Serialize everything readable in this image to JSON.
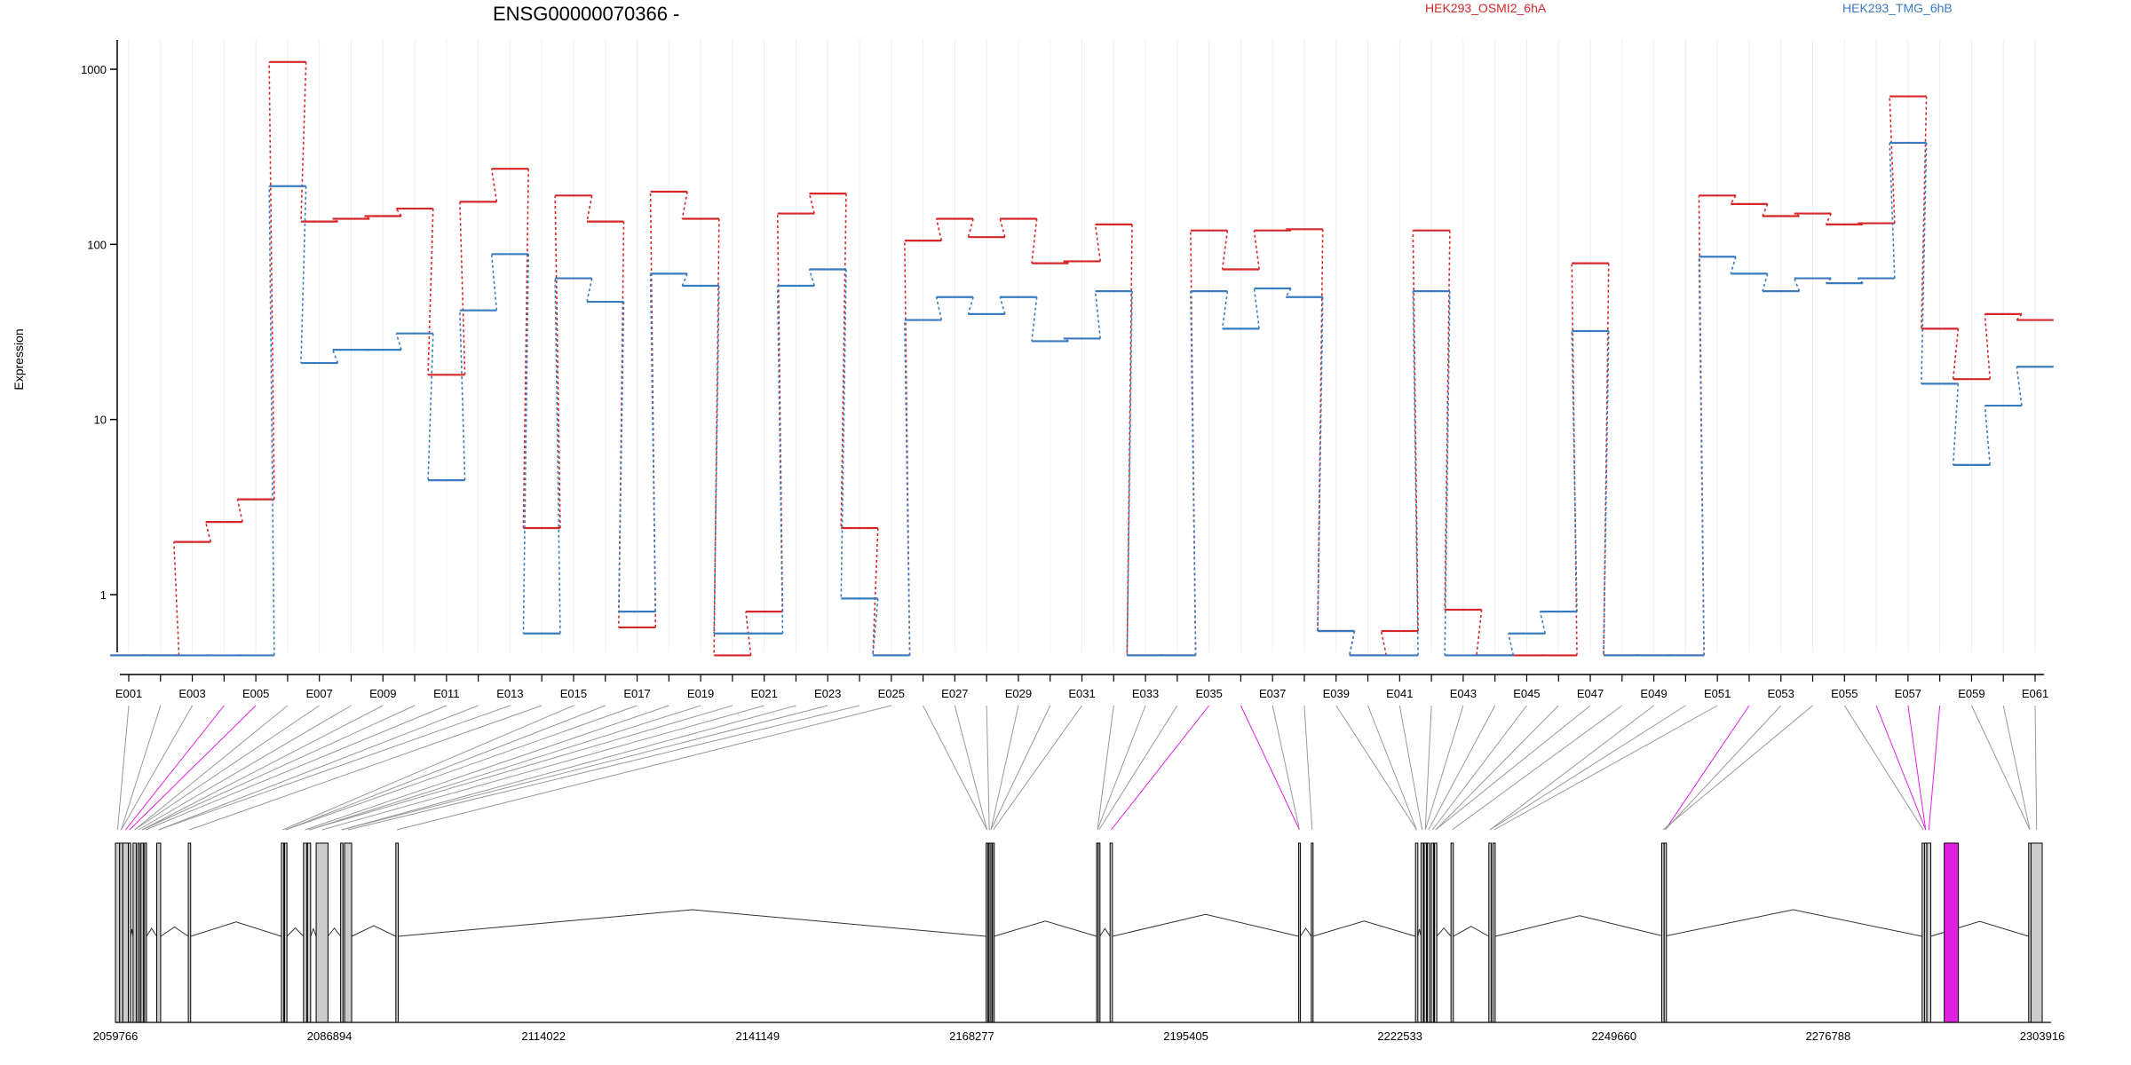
{
  "chart_data": {
    "type": "line",
    "title": "ENSG00000070366 -",
    "ylabel": "Expression",
    "y_scale": "log",
    "ylim": [
      0.42,
      1300
    ],
    "y_ticks": [
      1,
      10,
      100,
      1000
    ],
    "y_tick_labels": [
      "1",
      "10",
      "100",
      "1000"
    ],
    "grid": "vertical lines at each exon",
    "series": [
      {
        "name": "HEK293_OSMI2_6hA",
        "color": "#d62728",
        "values": [
          0.45,
          0.45,
          2.0,
          2.6,
          3.5,
          1100,
          135,
          140,
          145,
          160,
          18,
          175,
          270,
          2.4,
          190,
          135,
          0.65,
          200,
          140,
          0.45,
          0.8,
          150,
          195,
          2.4,
          0.45,
          105,
          140,
          110,
          140,
          78,
          80,
          130,
          0.45,
          0.45,
          120,
          72,
          120,
          122,
          0.62,
          0.45,
          0.62,
          120,
          0.82,
          0.45,
          0.45,
          0.45,
          78,
          0.45,
          0.45,
          0.45,
          190,
          170,
          145,
          150,
          130,
          132,
          700,
          33,
          17,
          40,
          37
        ]
      },
      {
        "name": "HEK293_TMG_6hB",
        "color": "#3a7bbf",
        "values": [
          0.45,
          0.45,
          0.45,
          0.45,
          0.45,
          215,
          21,
          25,
          25,
          31,
          4.5,
          42,
          88,
          0.6,
          64,
          47,
          0.8,
          68,
          58,
          0.6,
          0.6,
          58,
          72,
          0.95,
          0.45,
          37,
          50,
          40,
          50,
          28,
          29,
          54,
          0.45,
          0.45,
          54,
          33,
          56,
          50,
          0.62,
          0.45,
          0.45,
          54,
          0.45,
          0.45,
          0.6,
          0.8,
          32,
          0.45,
          0.45,
          0.45,
          85,
          68,
          54,
          64,
          60,
          64,
          380,
          16,
          5.5,
          12,
          20
        ]
      }
    ],
    "exons": [
      "E001",
      "E002",
      "E003",
      "E004",
      "E005",
      "E006",
      "E007",
      "E008",
      "E009",
      "E010",
      "E011",
      "E012",
      "E013",
      "E014",
      "E015",
      "E016",
      "E017",
      "E018",
      "E019",
      "E020",
      "E021",
      "E022",
      "E023",
      "E024",
      "E025",
      "E026",
      "E027",
      "E028",
      "E029",
      "E030",
      "E031",
      "E032",
      "E033",
      "E034",
      "E035",
      "E036",
      "E037",
      "E038",
      "E039",
      "E040",
      "E041",
      "E042",
      "E043",
      "E044",
      "E045",
      "E046",
      "E047",
      "E048",
      "E049",
      "E050",
      "E051",
      "E052",
      "E053",
      "E054",
      "E055",
      "E056",
      "E057",
      "E058",
      "E059",
      "E060",
      "E061"
    ],
    "exon_tick_labels": [
      "E001",
      "E003",
      "E005",
      "E007",
      "E009",
      "E011",
      "E013",
      "E015",
      "E017",
      "E019",
      "E021",
      "E023",
      "E025",
      "E027",
      "E029",
      "E031",
      "E033",
      "E035",
      "E037",
      "E039",
      "E041",
      "E043",
      "E045",
      "E047",
      "E049",
      "E051",
      "E053",
      "E055",
      "E057",
      "E059",
      "E061"
    ],
    "highlighted_exons": [
      "E004",
      "E005",
      "E035",
      "E036",
      "E052",
      "E056",
      "E057",
      "E058"
    ],
    "genomic_axis": {
      "range": [
        2059766,
        2303916
      ],
      "ticks": [
        2059766,
        2086894,
        2114022,
        2141149,
        2168277,
        2195405,
        2222533,
        2249660,
        2276788,
        2303916
      ],
      "tick_labels": [
        "2059766",
        "2086894",
        "2114022",
        "2141149",
        "2168277",
        "2195405",
        "2222533",
        "2249660",
        "2276788",
        "2303916"
      ]
    },
    "exon_genomic_start": [
      2059766,
      2060300,
      2060700,
      2061400,
      2062000,
      2062600,
      2063000,
      2063450,
      2065000,
      2069000,
      2080800,
      2081200,
      2083600,
      2084100,
      2085200,
      2088300,
      2088800,
      2095300,
      2170100,
      2170400,
      2170600,
      2170900,
      2184100,
      2184300,
      2185800,
      2209700,
      2211300,
      2224500,
      2225200,
      2225600,
      2226000,
      2226500,
      2226900,
      2229000,
      2233800,
      2234300,
      2256000,
      2255700,
      2288700,
      2289000,
      2289300,
      2302200,
      2302500
    ],
    "exon_genomic_end": [
      2060300,
      2060700,
      2061400,
      2061700,
      2062400,
      2062800,
      2063300,
      2063700,
      2065500,
      2069300,
      2081100,
      2081500,
      2084000,
      2084500,
      2086700,
      2088600,
      2089700,
      2095600,
      2170300,
      2170600,
      2170800,
      2171100,
      2184300,
      2184500,
      2186100,
      2209900,
      2211500,
      2224800,
      2225500,
      2225900,
      2226300,
      2226800,
      2227200,
      2229300,
      2234100,
      2234600,
      2256300,
      2256000,
      2289000,
      2289300,
      2289800,
      2302500,
      2303916
    ],
    "highlighted_blocks": [
      [
        2291500,
        2293300
      ]
    ]
  },
  "legend": {
    "series_a": "HEK293_OSMI2_6hA",
    "series_b": "HEK293_TMG_6hB"
  },
  "colors": {
    "series_a": "#d62728",
    "series_b": "#3a7bbf",
    "highlight": "#e020e0",
    "connector": "#999999",
    "exon_box": "#cccccc"
  }
}
